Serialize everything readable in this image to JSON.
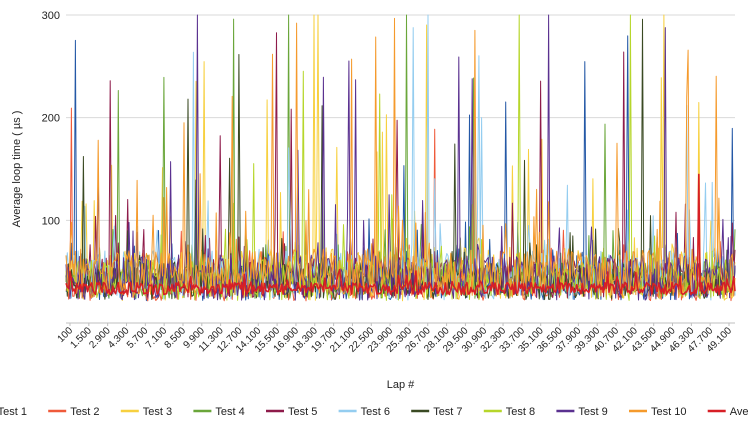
{
  "chart_data": {
    "type": "line",
    "title": "",
    "xlabel": "Lap #",
    "ylabel": "Average loop time ( µs )",
    "ylim": [
      0,
      300
    ],
    "yticks": [
      100,
      200,
      300
    ],
    "grid": true,
    "legend_position": "bottom",
    "x_range": [
      100,
      50000
    ],
    "x_tick_labels": [
      "100",
      "1.500",
      "2.900",
      "4.300",
      "5.700",
      "7.100",
      "8.500",
      "9.900",
      "11.300",
      "12.700",
      "14.100",
      "15.500",
      "16.900",
      "18.300",
      "19.700",
      "21.100",
      "22.500",
      "23.900",
      "25.300",
      "26.700",
      "28.100",
      "29.500",
      "30.900",
      "32.300",
      "33.700",
      "35.100",
      "36.500",
      "37.900",
      "39.300",
      "40.700",
      "42.100",
      "43.500",
      "44.900",
      "46.300",
      "47.700",
      "49.100"
    ],
    "series": [
      {
        "name": "Test 1",
        "color": "#2458a6",
        "baseline": 38,
        "noise": 18,
        "spike_rate": 0.012
      },
      {
        "name": "Test 2",
        "color": "#ef5a3a",
        "baseline": 36,
        "noise": 16,
        "spike_rate": 0.01
      },
      {
        "name": "Test 3",
        "color": "#f7d03f",
        "baseline": 45,
        "noise": 26,
        "spike_rate": 0.03
      },
      {
        "name": "Test 4",
        "color": "#6aa63a",
        "baseline": 40,
        "noise": 18,
        "spike_rate": 0.014
      },
      {
        "name": "Test 5",
        "color": "#8e1b4a",
        "baseline": 42,
        "noise": 20,
        "spike_rate": 0.03
      },
      {
        "name": "Test 6",
        "color": "#94cdf0",
        "baseline": 44,
        "noise": 24,
        "spike_rate": 0.024
      },
      {
        "name": "Test 7",
        "color": "#3a4a23",
        "baseline": 39,
        "noise": 18,
        "spike_rate": 0.012
      },
      {
        "name": "Test 8",
        "color": "#b6d62a",
        "baseline": 40,
        "noise": 20,
        "spike_rate": 0.018
      },
      {
        "name": "Test 9",
        "color": "#5a3190",
        "baseline": 42,
        "noise": 22,
        "spike_rate": 0.02
      },
      {
        "name": "Test 10",
        "color": "#f59a2c",
        "baseline": 46,
        "noise": 24,
        "spike_rate": 0.028
      },
      {
        "name": "Average",
        "color": "#d71f26",
        "baseline": 33,
        "noise": 6,
        "spike_rate": 0.004
      }
    ]
  }
}
